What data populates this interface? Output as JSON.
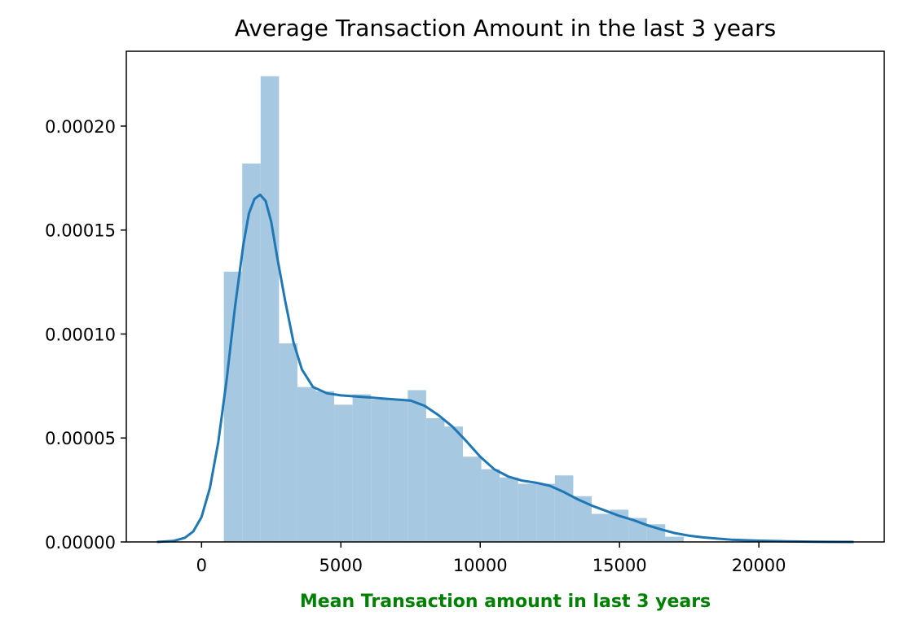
{
  "chart_data": {
    "type": "bar",
    "title": "Average Transaction Amount in the last 3 years",
    "xlabel": "Mean Transaction amount in last 3 years",
    "ylabel": "",
    "xlim": [
      -2700,
      24500
    ],
    "ylim": [
      0,
      0.000236
    ],
    "x_ticks": [
      0,
      5000,
      10000,
      15000,
      20000
    ],
    "x_tick_labels": [
      "0",
      "5000",
      "10000",
      "15000",
      "20000"
    ],
    "y_ticks": [
      0,
      5e-05,
      0.0001,
      0.00015,
      0.0002
    ],
    "y_tick_labels": [
      "0.00000",
      "0.00005",
      "0.00010",
      "0.00015",
      "0.00020"
    ],
    "grid": false,
    "colors": {
      "bar": "#a6c8e0",
      "kde": "#1f77b4",
      "xlabel": "#008000"
    },
    "histogram": {
      "bin_edges": [
        800,
        1460,
        2120,
        2780,
        3440,
        4100,
        4760,
        5420,
        6080,
        6740,
        7400,
        8060,
        8720,
        9380,
        10040,
        10700,
        11360,
        12020,
        12680,
        13340,
        14000,
        14660,
        15320,
        15980,
        16640,
        17300
      ],
      "values": [
        0.00013,
        0.000182,
        0.000224,
        9.55e-05,
        7.45e-05,
        7.25e-05,
        6.6e-05,
        7.1e-05,
        6.85e-05,
        6.85e-05,
        7.3e-05,
        5.95e-05,
        5.55e-05,
        4.1e-05,
        3.5e-05,
        3.1e-05,
        2.8e-05,
        2.8e-05,
        3.2e-05,
        2.2e-05,
        1.35e-05,
        1.55e-05,
        1.15e-05,
        8.5e-06,
        2.5e-06
      ]
    },
    "series": [
      {
        "type": "line",
        "x": [
          -1600,
          -1000,
          -600,
          -300,
          0,
          300,
          600,
          900,
          1200,
          1500,
          1700,
          1900,
          2100,
          2300,
          2500,
          2700,
          3000,
          3300,
          3600,
          4000,
          4500,
          5000,
          5500,
          6000,
          6500,
          7000,
          7500,
          8000,
          8500,
          9000,
          9500,
          10000,
          10500,
          11000,
          11500,
          12000,
          12500,
          13000,
          13500,
          14000,
          14500,
          15000,
          15500,
          16000,
          16500,
          17000,
          17500,
          18000,
          18500,
          19000,
          20000,
          21000,
          22000,
          23400
        ],
        "y": [
          0,
          5e-07,
          2e-06,
          5e-06,
          1.2e-05,
          2.6e-05,
          4.8e-05,
          7.8e-05,
          0.000113,
          0.000143,
          0.000158,
          0.000165,
          0.000167,
          0.000164,
          0.000154,
          0.000138,
          0.000116,
          9.6e-05,
          8.3e-05,
          7.45e-05,
          7.15e-05,
          7.05e-05,
          7e-05,
          6.95e-05,
          6.9e-05,
          6.85e-05,
          6.8e-05,
          6.55e-05,
          6.1e-05,
          5.55e-05,
          4.85e-05,
          4.1e-05,
          3.5e-05,
          3.15e-05,
          2.95e-05,
          2.85e-05,
          2.7e-05,
          2.4e-05,
          2.05e-05,
          1.75e-05,
          1.5e-05,
          1.25e-05,
          1.05e-05,
          8e-06,
          6e-06,
          4.2e-06,
          3e-06,
          2.2e-06,
          1.6e-06,
          1.1e-06,
          6e-07,
          3e-07,
          1e-07,
          0
        ]
      }
    ]
  }
}
